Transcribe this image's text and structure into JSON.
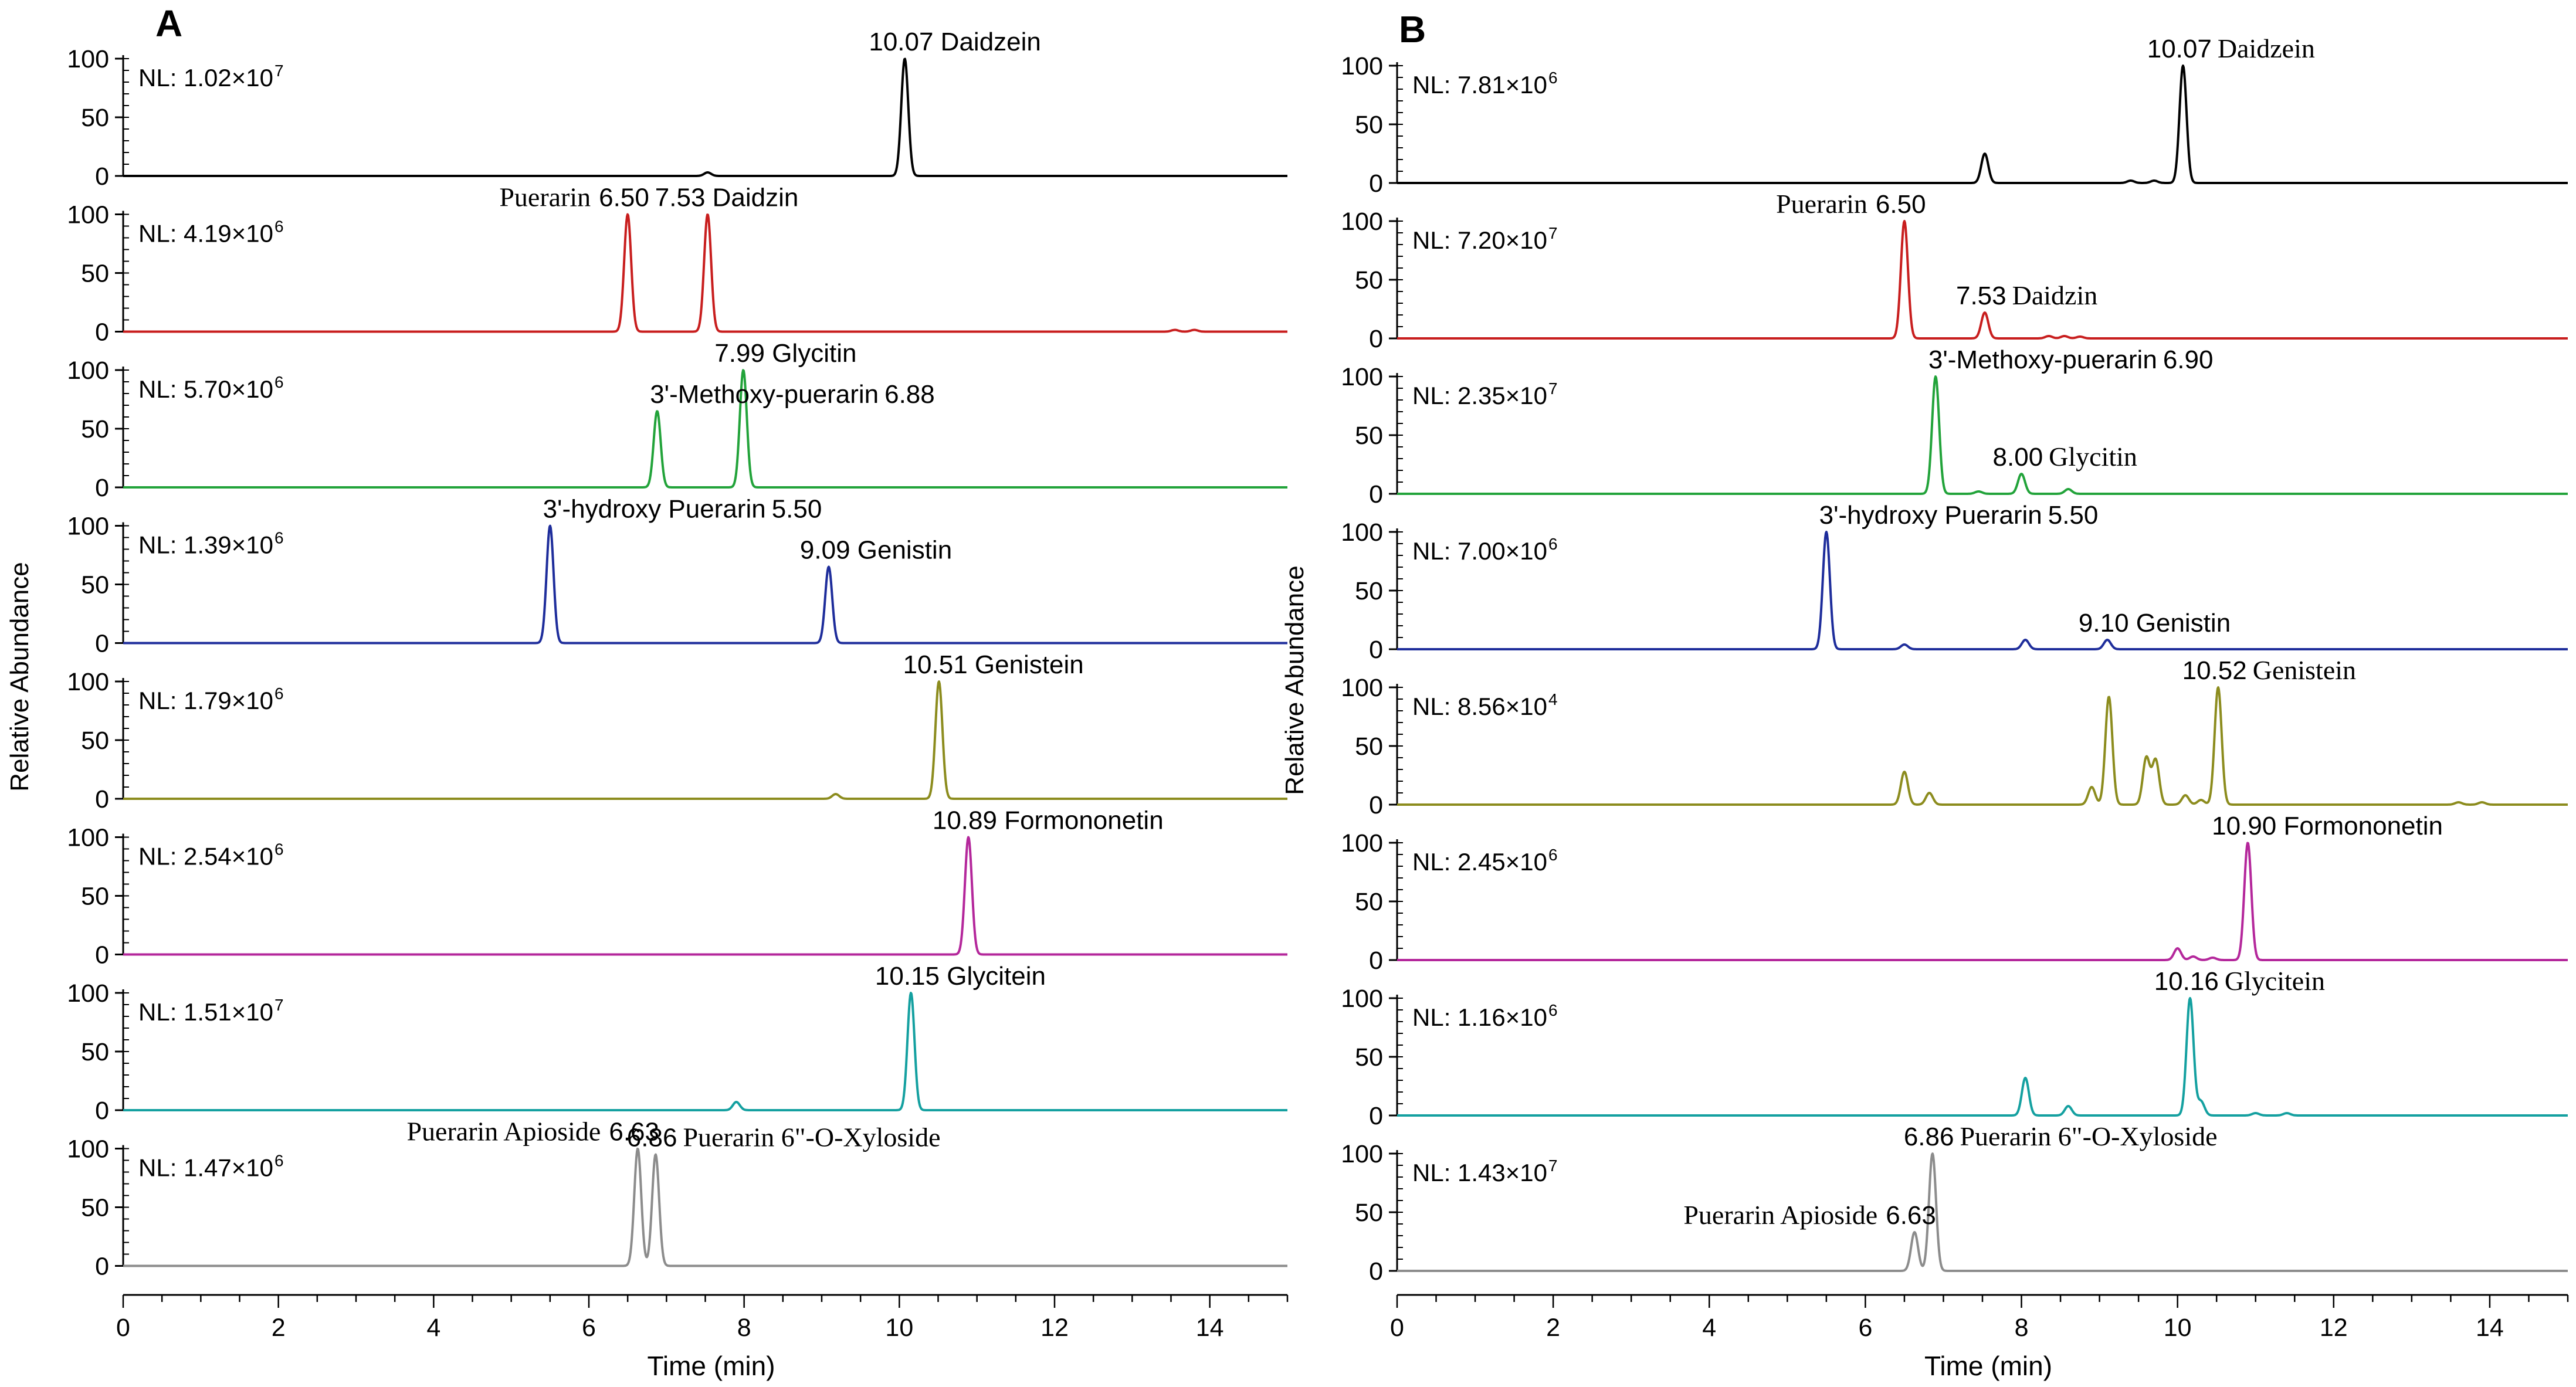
{
  "chart_data": [
    {
      "type": "line",
      "panel_label": "A",
      "ylabel": "Relative Abundance",
      "xlabel": "Time (min)",
      "xlim": [
        0,
        15
      ],
      "x_ticks": [
        "0",
        "2",
        "4",
        "6",
        "8",
        "10",
        "12",
        "14"
      ],
      "ylim": [
        0,
        100
      ],
      "y_ticks": [
        "0",
        "50",
        "100"
      ],
      "series": [
        {
          "color": "#000000",
          "nl_mantissa": "NL: 1.02×10",
          "nl_exp": "7",
          "peaks": [
            [
              10.07,
              100
            ],
            [
              7.53,
              3
            ]
          ],
          "labels": [
            {
              "text": "10.07 Daidzein",
              "x": 10.07,
              "y": 100
            }
          ]
        },
        {
          "color": "#c81e1e",
          "nl_mantissa": "NL: 4.19×10",
          "nl_exp": "6",
          "peaks": [
            [
              6.5,
              100
            ],
            [
              7.53,
              100
            ],
            [
              13.55,
              1.5
            ],
            [
              13.8,
              1.5
            ]
          ],
          "labels": [
            {
              "text": "Puerarin",
              "x": 6.5,
              "y": 100
            },
            {
              "text": "6.50",
              "x": 6.5,
              "y": 100
            },
            {
              "text": "7.53  Daidzin",
              "x": 7.53,
              "y": 100
            }
          ]
        },
        {
          "color": "#22a33a",
          "nl_mantissa": "NL: 5.70×10",
          "nl_exp": "6",
          "peaks": [
            [
              6.88,
              65
            ],
            [
              7.99,
              100
            ]
          ],
          "labels": [
            {
              "text": "3'-Methoxy-puerarin",
              "x": 6.88,
              "y": 65
            },
            {
              "text": "6.88",
              "x": 6.88,
              "y": 65
            },
            {
              "text": "7.99  Glycitin",
              "x": 7.99,
              "y": 100
            }
          ]
        },
        {
          "color": "#1e2d9b",
          "nl_mantissa": "NL: 1.39×10",
          "nl_exp": "6",
          "peaks": [
            [
              5.5,
              100
            ],
            [
              9.09,
              65
            ]
          ],
          "labels": [
            {
              "text": "3'-hydroxy Puerarin",
              "x": 5.5,
              "y": 100
            },
            {
              "text": "5.50",
              "x": 5.5,
              "y": 100
            },
            {
              "text": "9.09  Genistin",
              "x": 9.09,
              "y": 65
            }
          ]
        },
        {
          "color": "#8c8c1e",
          "nl_mantissa": "NL: 1.79×10",
          "nl_exp": "6",
          "peaks": [
            [
              9.18,
              4
            ],
            [
              10.51,
              100
            ]
          ],
          "labels": [
            {
              "text": "10.51   Genistein",
              "x": 10.51,
              "y": 100
            }
          ]
        },
        {
          "color": "#b4279b",
          "nl_mantissa": "NL: 2.54×10",
          "nl_exp": "6",
          "peaks": [
            [
              10.89,
              100
            ]
          ],
          "labels": [
            {
              "text": "10.89  Formononetin",
              "x": 10.89,
              "y": 100
            }
          ]
        },
        {
          "color": "#14a0a0",
          "nl_mantissa": "NL: 1.51×10",
          "nl_exp": "7",
          "peaks": [
            [
              7.9,
              7
            ],
            [
              10.15,
              100
            ]
          ],
          "labels": [
            {
              "text": "10.15   Glycitein",
              "x": 10.15,
              "y": 100
            }
          ]
        },
        {
          "color": "#8c8c8c",
          "nl_mantissa": "NL: 1.47×10",
          "nl_exp": "6",
          "peaks": [
            [
              6.63,
              100
            ],
            [
              6.86,
              95
            ]
          ],
          "labels": [
            {
              "text": "Puerarin Apioside",
              "x": 6.63,
              "y": 100
            },
            {
              "text": "6.63",
              "x": 6.63,
              "y": 100
            },
            {
              "text": "6.86",
              "x": 6.86,
              "y": 95
            },
            {
              "text": "Puerarin 6\"-O-Xyloside",
              "x": 6.86,
              "y": 95
            }
          ]
        }
      ]
    },
    {
      "type": "line",
      "panel_label": "B",
      "ylabel": "Relative Abundance",
      "xlabel": "Time (min)",
      "xlim": [
        0,
        15
      ],
      "x_ticks": [
        "0",
        "2",
        "4",
        "6",
        "8",
        "10",
        "12",
        "14"
      ],
      "ylim": [
        0,
        100
      ],
      "y_ticks": [
        "0",
        "50",
        "100"
      ],
      "series": [
        {
          "color": "#000000",
          "nl_mantissa": "NL: 7.81×10",
          "nl_exp": "6",
          "peaks": [
            [
              7.53,
              25
            ],
            [
              9.4,
              2
            ],
            [
              9.7,
              2
            ],
            [
              10.07,
              100
            ]
          ],
          "labels": [
            {
              "text": "10.07",
              "x": 10.07,
              "y": 100
            },
            {
              "text": "Daidzein",
              "x": 10.07,
              "y": 100
            }
          ]
        },
        {
          "color": "#c81e1e",
          "nl_mantissa": "NL: 7.20×10",
          "nl_exp": "7",
          "peaks": [
            [
              6.5,
              100
            ],
            [
              7.53,
              22
            ],
            [
              8.35,
              2
            ],
            [
              8.55,
              2
            ],
            [
              8.75,
              1.5
            ]
          ],
          "labels": [
            {
              "text": "Puerarin",
              "x": 6.5,
              "y": 100
            },
            {
              "text": "6.50",
              "x": 6.5,
              "y": 100
            },
            {
              "text": "7.53",
              "x": 7.53,
              "y": 22
            },
            {
              "text": "Daidzin",
              "x": 7.53,
              "y": 22
            }
          ]
        },
        {
          "color": "#22a33a",
          "nl_mantissa": "NL: 2.35×10",
          "nl_exp": "7",
          "peaks": [
            [
              6.9,
              100
            ],
            [
              7.45,
              2
            ],
            [
              8.0,
              17
            ],
            [
              8.6,
              4
            ]
          ],
          "labels": [
            {
              "text": "3'-Methoxy-puerarin",
              "x": 6.9,
              "y": 100
            },
            {
              "text": "6.90",
              "x": 6.9,
              "y": 100
            },
            {
              "text": "8.00",
              "x": 8.0,
              "y": 17
            },
            {
              "text": "Glycitin",
              "x": 8.0,
              "y": 17
            }
          ]
        },
        {
          "color": "#1e2d9b",
          "nl_mantissa": "NL: 7.00×10",
          "nl_exp": "6",
          "peaks": [
            [
              5.5,
              100
            ],
            [
              6.5,
              4
            ],
            [
              8.05,
              8
            ],
            [
              9.1,
              8
            ]
          ],
          "labels": [
            {
              "text": "3'-hydroxy Puerarin",
              "x": 5.5,
              "y": 100
            },
            {
              "text": "5.50",
              "x": 5.5,
              "y": 100
            },
            {
              "text": "9.10  Genistin",
              "x": 9.1,
              "y": 8
            }
          ]
        },
        {
          "color": "#8c8c1e",
          "nl_mantissa": "NL: 8.56×10",
          "nl_exp": "4",
          "peaks": [
            [
              6.5,
              28
            ],
            [
              6.82,
              10
            ],
            [
              8.9,
              15
            ],
            [
              9.12,
              92
            ],
            [
              9.6,
              40
            ],
            [
              9.72,
              38
            ],
            [
              10.1,
              8
            ],
            [
              10.3,
              4
            ],
            [
              10.52,
              100
            ],
            [
              13.6,
              2
            ],
            [
              13.9,
              2
            ]
          ],
          "labels": [
            {
              "text": "10.52",
              "x": 10.52,
              "y": 100
            },
            {
              "text": "Genistein",
              "x": 10.52,
              "y": 100
            }
          ]
        },
        {
          "color": "#b4279b",
          "nl_mantissa": "NL: 2.45×10",
          "nl_exp": "6",
          "peaks": [
            [
              10.0,
              10
            ],
            [
              10.2,
              3
            ],
            [
              10.45,
              2
            ],
            [
              10.9,
              100
            ]
          ],
          "labels": [
            {
              "text": "10.90  Formononetin",
              "x": 10.9,
              "y": 100
            }
          ]
        },
        {
          "color": "#14a0a0",
          "nl_mantissa": "NL: 1.16×10",
          "nl_exp": "6",
          "peaks": [
            [
              8.05,
              32
            ],
            [
              8.6,
              8
            ],
            [
              10.16,
              100
            ],
            [
              10.3,
              12
            ],
            [
              11.0,
              2
            ],
            [
              11.4,
              2
            ]
          ],
          "labels": [
            {
              "text": "10.16",
              "x": 10.16,
              "y": 100
            },
            {
              "text": "Glycitein",
              "x": 10.16,
              "y": 100
            }
          ]
        },
        {
          "color": "#8c8c8c",
          "nl_mantissa": "NL: 1.43×10",
          "nl_exp": "7",
          "peaks": [
            [
              6.63,
              33
            ],
            [
              6.86,
              100
            ]
          ],
          "labels": [
            {
              "text": "6.86",
              "x": 6.86,
              "y": 100
            },
            {
              "text": "Puerarin 6\"-O-Xyloside",
              "x": 6.86,
              "y": 100
            },
            {
              "text": "Puerarin Apioside",
              "x": 6.63,
              "y": 33
            },
            {
              "text": "6.63",
              "x": 6.63,
              "y": 33
            }
          ]
        }
      ]
    }
  ]
}
